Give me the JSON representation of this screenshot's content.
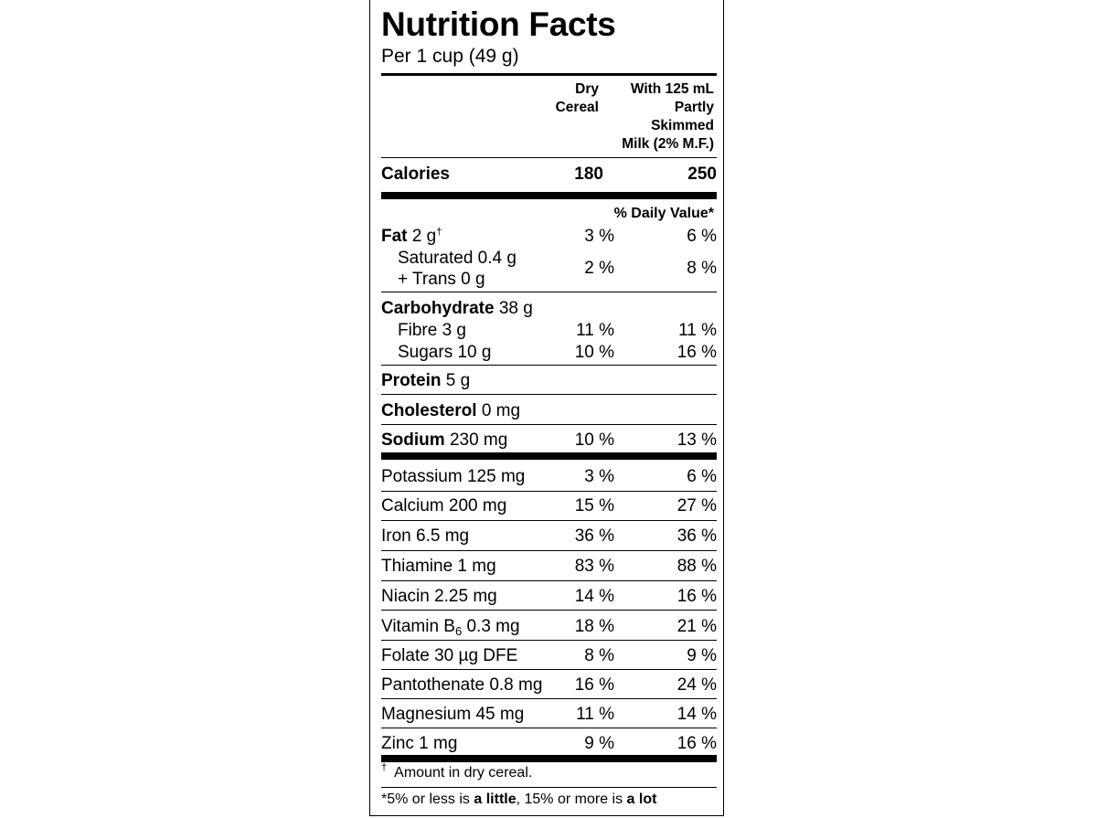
{
  "title": "Nutrition Facts",
  "serving": "Per 1 cup (49 g)",
  "columns": {
    "dry": [
      "Dry",
      "Cereal"
    ],
    "milk": [
      "With 125 mL",
      "Partly",
      "Skimmed",
      "Milk (2% M.F.)"
    ]
  },
  "calories": {
    "label": "Calories",
    "dry": "180",
    "milk": "250"
  },
  "daily_value_header": "% Daily Value*",
  "fat": {
    "name": "Fat",
    "amount": "2 g",
    "mark": "†",
    "dry": "3 %",
    "milk": "6 %"
  },
  "saturated": {
    "line1": "Saturated 0.4 g",
    "line2": "+ Trans 0 g",
    "dry": "2 %",
    "milk": "8 %"
  },
  "carbohydrate": {
    "name": "Carbohydrate",
    "amount": "38 g"
  },
  "fibre": {
    "name": "Fibre 3 g",
    "dry": "11 %",
    "milk": "11 %"
  },
  "sugars": {
    "name": "Sugars 10 g",
    "dry": "10 %",
    "milk": "16 %"
  },
  "protein": {
    "name": "Protein",
    "amount": "5 g"
  },
  "cholesterol": {
    "name": "Cholesterol",
    "amount": "0 mg"
  },
  "sodium": {
    "name": "Sodium",
    "amount": "230 mg",
    "dry": "10 %",
    "milk": "13 %"
  },
  "minerals": [
    {
      "name": "Potassium 125 mg",
      "dry": "3 %",
      "milk": "6 %"
    },
    {
      "name": "Calcium 200 mg",
      "dry": "15 %",
      "milk": "27 %"
    },
    {
      "name": "Iron 6.5 mg",
      "dry": "36 %",
      "milk": "36 %"
    },
    {
      "name": "Thiamine 1 mg",
      "dry": "83 %",
      "milk": "88 %"
    },
    {
      "name": "Niacin 2.25 mg",
      "dry": "14 %",
      "milk": "16 %"
    }
  ],
  "vitamin_b6": {
    "prefix": "Vitamin B",
    "subscript": "6",
    "amount": "0.3 mg",
    "dry": "18 %",
    "milk": "21 %"
  },
  "minerals2": [
    {
      "name": "Folate 30 µg DFE",
      "dry": "8 %",
      "milk": "9 %"
    },
    {
      "name": "Pantothenate 0.8 mg",
      "dry": "16 %",
      "milk": "24 %"
    },
    {
      "name": "Magnesium 45 mg",
      "dry": "11 %",
      "milk": "14 %"
    },
    {
      "name": "Zinc 1 mg",
      "dry": "9 %",
      "milk": "16 %"
    }
  ],
  "footnote": {
    "mark": "†",
    "text": "Amount in dry cereal."
  },
  "legend": {
    "t1": "*5% or less is ",
    "b1": "a little",
    "t2": ", 15% or more is ",
    "b2": "a lot"
  }
}
